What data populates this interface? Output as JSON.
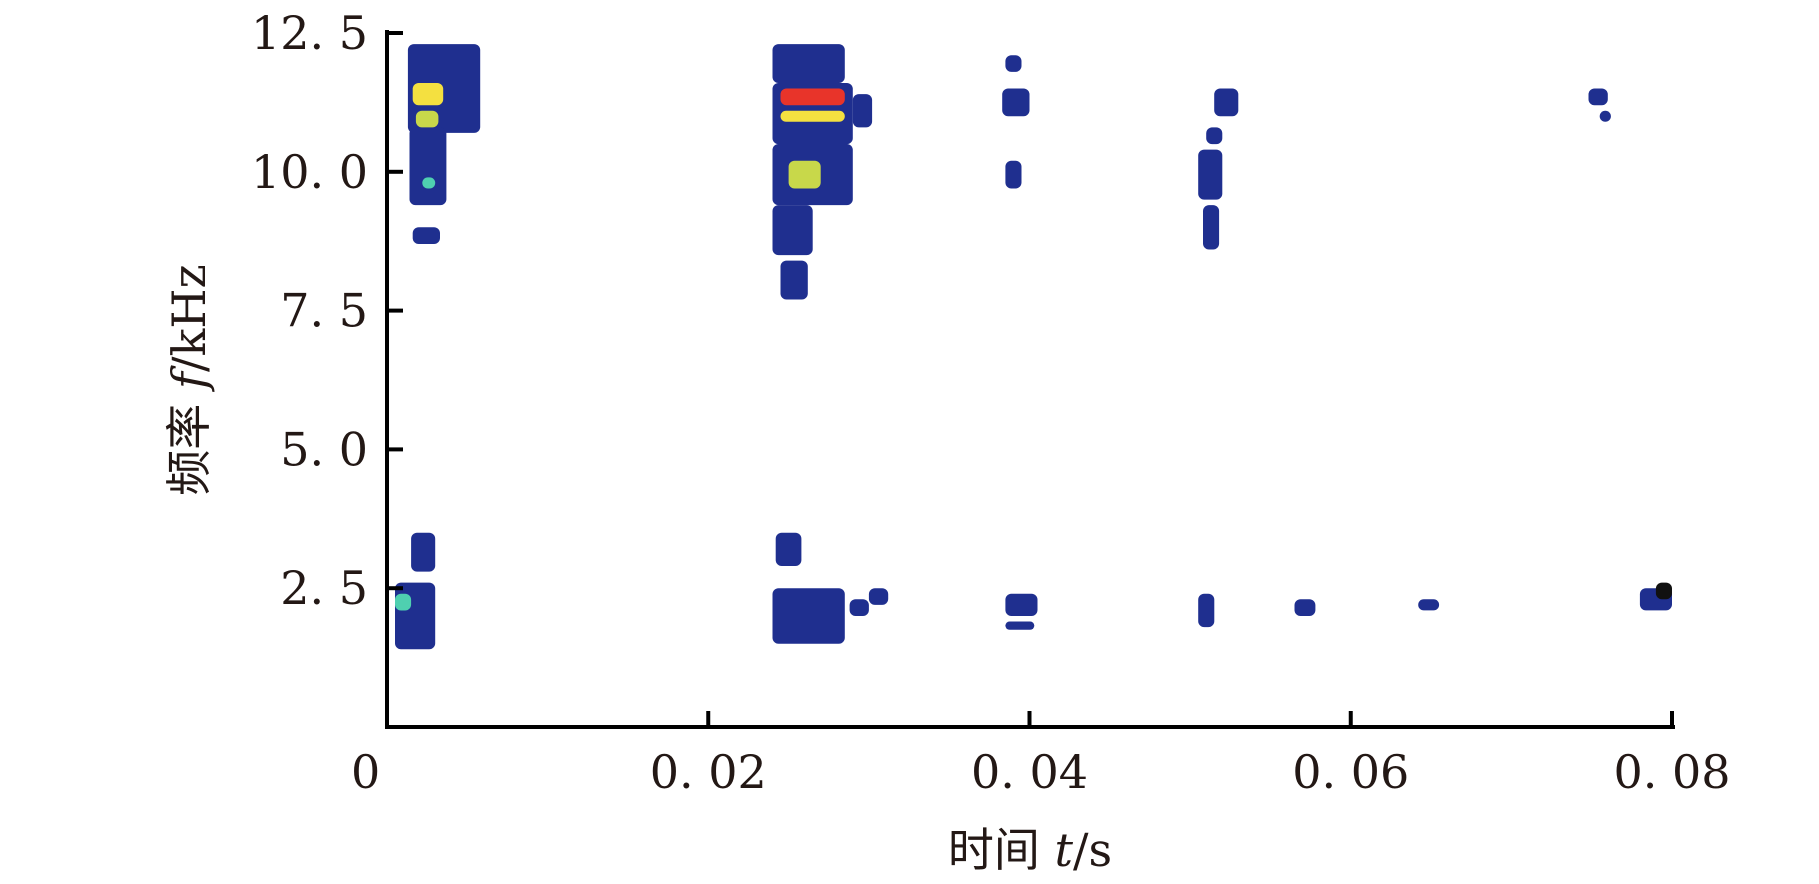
{
  "chart_data": {
    "type": "heatmap",
    "title": "",
    "xlabel": {
      "prefix": "时间 ",
      "var": "t",
      "unit": "/s"
    },
    "ylabel": {
      "prefix": "频率 ",
      "var": "f",
      "unit": "/kHz"
    },
    "xlim": [
      0,
      0.08
    ],
    "ylim": [
      0,
      12.5
    ],
    "xticks": [
      0,
      0.02,
      0.04,
      0.06,
      0.08
    ],
    "xtick_labels": [
      "0",
      "0. 02",
      "0. 04",
      "0. 06",
      "0. 08"
    ],
    "yticks": [
      2.5,
      5.0,
      7.5,
      10.0,
      12.5
    ],
    "ytick_labels": [
      "2. 5",
      "5. 0",
      "7. 5",
      "10. 0",
      "12. 5"
    ],
    "grid": false,
    "colors": {
      "low": "#1f2f8f",
      "low_mid": "#2a8fd0",
      "mid": "#4fd0b0",
      "mid_high": "#c8d84a",
      "high": "#f4e040",
      "peak": "#e8342a"
    },
    "blobs": [
      {
        "t": [
          0.0013,
          0.0058
        ],
        "f": [
          10.7,
          12.3
        ],
        "level": 0.25
      },
      {
        "t": [
          0.0014,
          0.0037
        ],
        "f": [
          9.4,
          10.8
        ],
        "level": 0.2
      },
      {
        "t": [
          0.0016,
          0.0033
        ],
        "f": [
          8.7,
          9.0
        ],
        "level": 0.15
      },
      {
        "t": [
          0.0016,
          0.0035
        ],
        "f": [
          11.2,
          11.6
        ],
        "level": 0.9
      },
      {
        "t": [
          0.0018,
          0.0032
        ],
        "f": [
          10.8,
          11.1
        ],
        "level": 0.7
      },
      {
        "t": [
          0.0022,
          0.003
        ],
        "f": [
          9.7,
          9.9
        ],
        "level": 0.5
      },
      {
        "t": [
          0.024,
          0.0285
        ],
        "f": [
          11.6,
          12.3
        ],
        "level": 0.25
      },
      {
        "t": [
          0.024,
          0.029
        ],
        "f": [
          10.5,
          11.6
        ],
        "level": 0.3
      },
      {
        "t": [
          0.0245,
          0.0285
        ],
        "f": [
          11.2,
          11.5
        ],
        "level": 1.0
      },
      {
        "t": [
          0.0245,
          0.0285
        ],
        "f": [
          10.9,
          11.1
        ],
        "level": 0.85
      },
      {
        "t": [
          0.024,
          0.029
        ],
        "f": [
          9.4,
          10.5
        ],
        "level": 0.3
      },
      {
        "t": [
          0.025,
          0.027
        ],
        "f": [
          9.7,
          10.2
        ],
        "level": 0.65
      },
      {
        "t": [
          0.024,
          0.0265
        ],
        "f": [
          8.5,
          9.4
        ],
        "level": 0.2
      },
      {
        "t": [
          0.0245,
          0.0262
        ],
        "f": [
          7.7,
          8.4
        ],
        "level": 0.15
      },
      {
        "t": [
          0.029,
          0.0302
        ],
        "f": [
          10.8,
          11.4
        ],
        "level": 0.15
      },
      {
        "t": [
          0.0385,
          0.0395
        ],
        "f": [
          11.8,
          12.1
        ],
        "level": 0.15
      },
      {
        "t": [
          0.0383,
          0.04
        ],
        "f": [
          11.0,
          11.5
        ],
        "level": 0.2
      },
      {
        "t": [
          0.0385,
          0.0395
        ],
        "f": [
          9.7,
          10.2
        ],
        "level": 0.15
      },
      {
        "t": [
          0.0505,
          0.052
        ],
        "f": [
          9.5,
          10.4
        ],
        "level": 0.25
      },
      {
        "t": [
          0.0508,
          0.0518
        ],
        "f": [
          8.6,
          9.4
        ],
        "level": 0.15
      },
      {
        "t": [
          0.051,
          0.052
        ],
        "f": [
          10.5,
          10.8
        ],
        "level": 0.15
      },
      {
        "t": [
          0.0515,
          0.053
        ],
        "f": [
          11.0,
          11.5
        ],
        "level": 0.2
      },
      {
        "t": [
          0.0748,
          0.076
        ],
        "f": [
          11.2,
          11.5
        ],
        "level": 0.2
      },
      {
        "t": [
          0.0755,
          0.0762
        ],
        "f": [
          10.9,
          11.1
        ],
        "level": 0.15
      },
      {
        "t": [
          0.0015,
          0.003
        ],
        "f": [
          2.8,
          3.5
        ],
        "level": 0.15
      },
      {
        "t": [
          0.0005,
          0.003
        ],
        "f": [
          1.4,
          2.6
        ],
        "level": 0.2
      },
      {
        "t": [
          0.0005,
          0.0015
        ],
        "f": [
          2.1,
          2.4
        ],
        "level": 0.55
      },
      {
        "t": [
          0.0242,
          0.0258
        ],
        "f": [
          2.9,
          3.5
        ],
        "level": 0.15
      },
      {
        "t": [
          0.024,
          0.0285
        ],
        "f": [
          1.5,
          2.5
        ],
        "level": 0.25
      },
      {
        "t": [
          0.0288,
          0.03
        ],
        "f": [
          2.0,
          2.3
        ],
        "level": 0.15
      },
      {
        "t": [
          0.03,
          0.0312
        ],
        "f": [
          2.2,
          2.5
        ],
        "level": 0.15
      },
      {
        "t": [
          0.0385,
          0.0405
        ],
        "f": [
          2.0,
          2.4
        ],
        "level": 0.25
      },
      {
        "t": [
          0.0385,
          0.0403
        ],
        "f": [
          1.75,
          1.9
        ],
        "level": 0.15
      },
      {
        "t": [
          0.0505,
          0.0515
        ],
        "f": [
          1.8,
          2.4
        ],
        "level": 0.15
      },
      {
        "t": [
          0.0565,
          0.0578
        ],
        "f": [
          2.0,
          2.3
        ],
        "level": 0.15
      },
      {
        "t": [
          0.0642,
          0.0655
        ],
        "f": [
          2.1,
          2.3
        ],
        "level": 0.15
      },
      {
        "t": [
          0.078,
          0.08
        ],
        "f": [
          2.1,
          2.5
        ],
        "level": 0.2
      },
      {
        "t": [
          0.079,
          0.08
        ],
        "f": [
          2.3,
          2.6
        ],
        "level": 0.05
      }
    ]
  }
}
